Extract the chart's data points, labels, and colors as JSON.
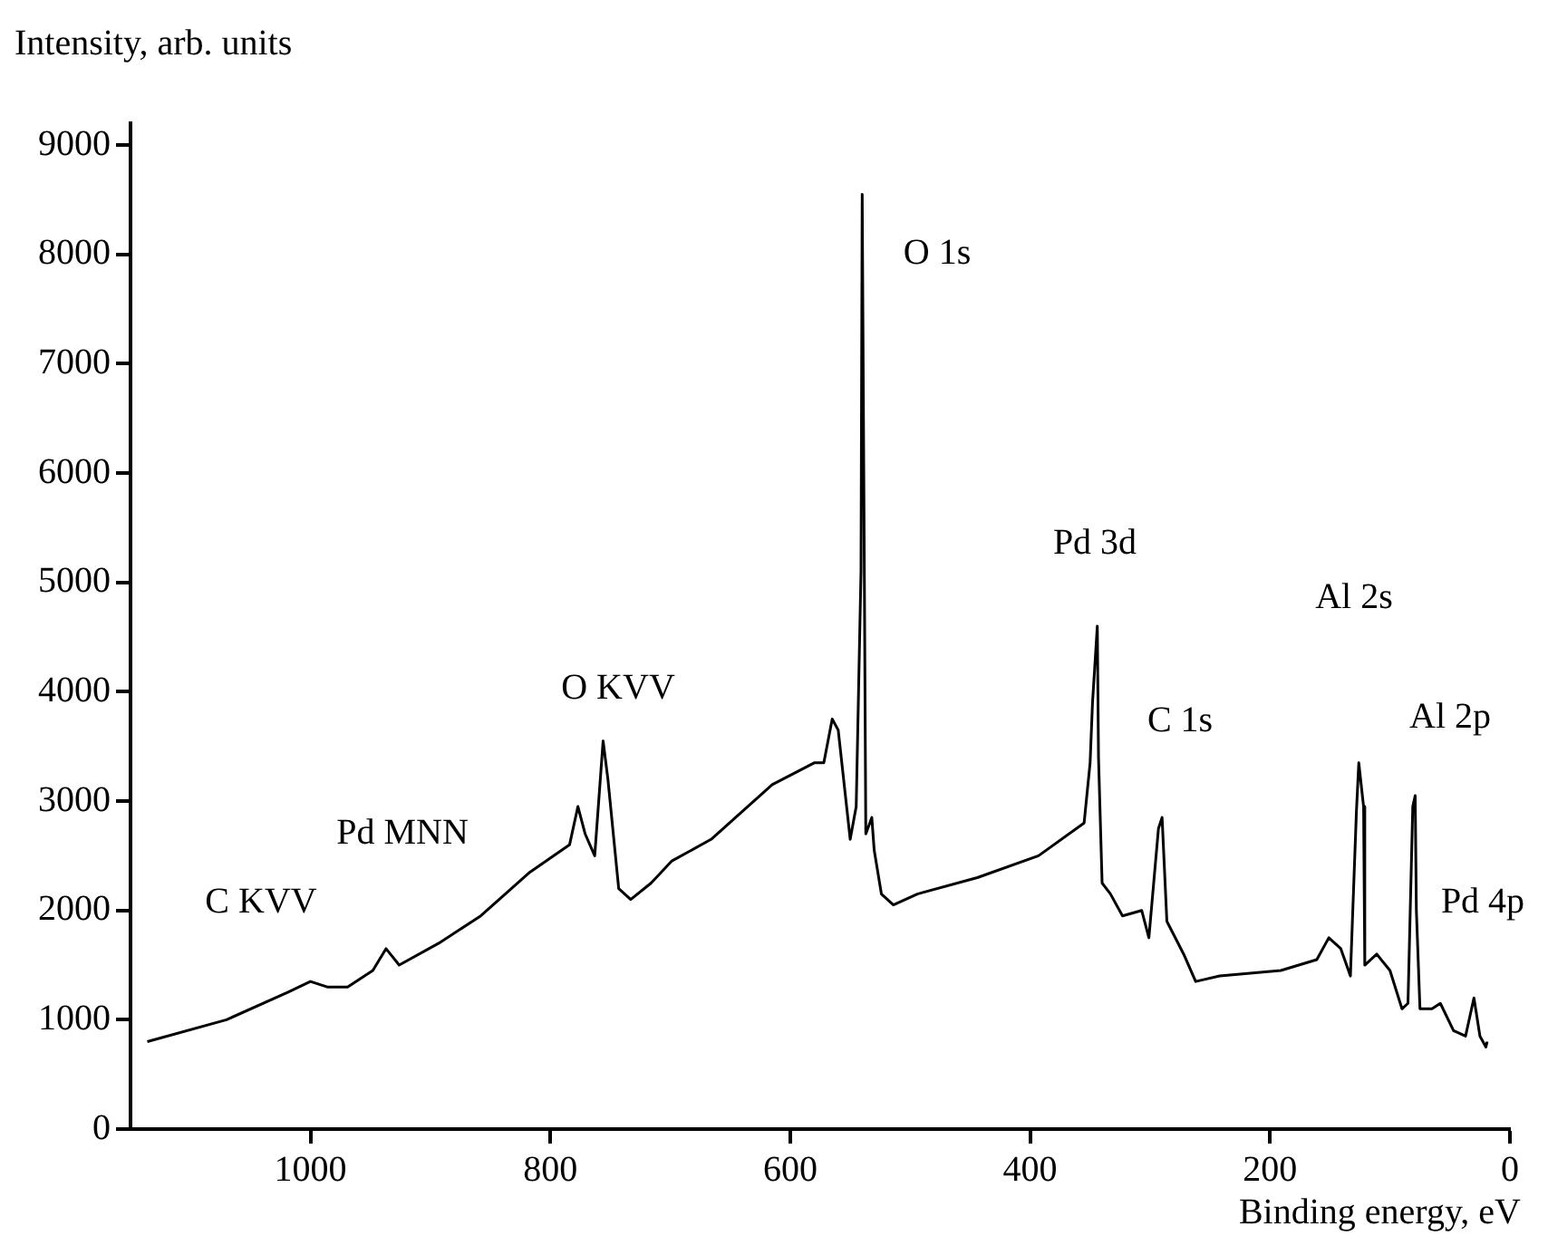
{
  "chart_data": {
    "type": "line",
    "xlabel": "Binding energy, eV",
    "ylabel": "Intensity, arb. units",
    "xlim": [
      1150,
      0
    ],
    "xticks": [
      1000,
      800,
      600,
      400,
      200,
      0
    ],
    "ylim": [
      0,
      9200
    ],
    "yticks": [
      0,
      1000,
      2000,
      3000,
      4000,
      5000,
      6000,
      7000,
      8000,
      9000
    ],
    "grid": false,
    "legend": false,
    "marker": "none",
    "line_style": "solid",
    "x": [
      1136,
      1070,
      1019,
      1000,
      986,
      969,
      948,
      937,
      926,
      893,
      858,
      817,
      784,
      777,
      771,
      763,
      758,
      756,
      752,
      743,
      733,
      716,
      699,
      666,
      615,
      580,
      572,
      565,
      560,
      550,
      545,
      541,
      540,
      537,
      532,
      530,
      524,
      514,
      494,
      444,
      393,
      355,
      350,
      348,
      344,
      343,
      340,
      333,
      323,
      307,
      301,
      293,
      290,
      286,
      272,
      262,
      242,
      191,
      161,
      151,
      141,
      133,
      128,
      126,
      122,
      121,
      111,
      100,
      90,
      85,
      81,
      79,
      78,
      75,
      65,
      58,
      47,
      37,
      30,
      25,
      20,
      19
    ],
    "series": [
      {
        "color": "#000000",
        "values": [
          800,
          1000,
          1250,
          1350,
          1300,
          1300,
          1450,
          1650,
          1500,
          1700,
          1950,
          2350,
          2600,
          2950,
          2700,
          2500,
          3250,
          3550,
          3200,
          2200,
          2100,
          2250,
          2450,
          2650,
          3150,
          3350,
          3350,
          3750,
          3650,
          2650,
          2950,
          5100,
          8550,
          2700,
          2850,
          2550,
          2150,
          2050,
          2150,
          2300,
          2500,
          2800,
          3350,
          3900,
          4600,
          3400,
          2250,
          2150,
          1950,
          2000,
          1750,
          2750,
          2850,
          1900,
          1600,
          1350,
          1400,
          1450,
          1550,
          1750,
          1650,
          1400,
          2900,
          3350,
          2950,
          1500,
          1600,
          1450,
          1100,
          1150,
          2950,
          3050,
          2000,
          1100,
          1100,
          1150,
          900,
          850,
          1200,
          850,
          750,
          800
        ]
      }
    ],
    "annotations": [
      "O 1s",
      "Pd 3d",
      "O KVV",
      "Pd MNN",
      "C KVV",
      "C 1s",
      "Al 2s",
      "Al 2p",
      "Pd 4p"
    ]
  }
}
